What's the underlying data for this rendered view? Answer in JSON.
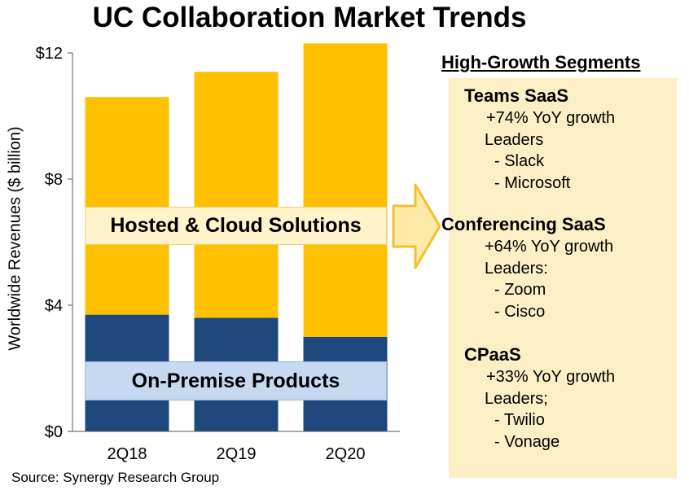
{
  "title": "UC Collaboration Market Trends",
  "source": "Source: Synergy Research Group",
  "colors": {
    "on_premise": "#1f497d",
    "hosted_cloud": "#ffc000",
    "arrow_fill": "#fde9a8",
    "arrow_stroke": "#f2c02e",
    "panel_bg": "#fcefc5"
  },
  "chart_data": {
    "type": "bar",
    "stacked": true,
    "categories": [
      "2Q18",
      "2Q19",
      "2Q20"
    ],
    "series": [
      {
        "name": "On-Premise Products",
        "values": [
          3.7,
          3.6,
          3.0
        ]
      },
      {
        "name": "Hosted & Cloud Solutions",
        "values": [
          6.9,
          7.8,
          9.3
        ]
      }
    ],
    "title": "UC Collaboration Market Trends",
    "xlabel": "",
    "ylabel": "Worldwide Revenues ($ billion)",
    "ylim": [
      0,
      12
    ],
    "yticks": [
      0,
      4,
      8,
      12
    ],
    "ytick_labels": [
      "$0",
      "$4",
      "$8",
      "$12"
    ],
    "grid": false,
    "legend": "none (series labelled in-chart)"
  },
  "segments_panel": {
    "title": "High-Growth Segments",
    "segments": [
      {
        "name": "Teams SaaS",
        "growth": "+74% YoY growth",
        "leaders_label": "Leaders",
        "leaders": [
          "- Slack",
          "- Microsoft"
        ]
      },
      {
        "name": "Conferencing SaaS",
        "growth": "+64% YoY growth",
        "leaders_label": "Leaders:",
        "leaders": [
          "- Zoom",
          "- Cisco"
        ]
      },
      {
        "name": "CPaaS",
        "growth": "+33% YoY growth",
        "leaders_label": "Leaders;",
        "leaders": [
          "- Twilio",
          "- Vonage"
        ]
      }
    ]
  }
}
